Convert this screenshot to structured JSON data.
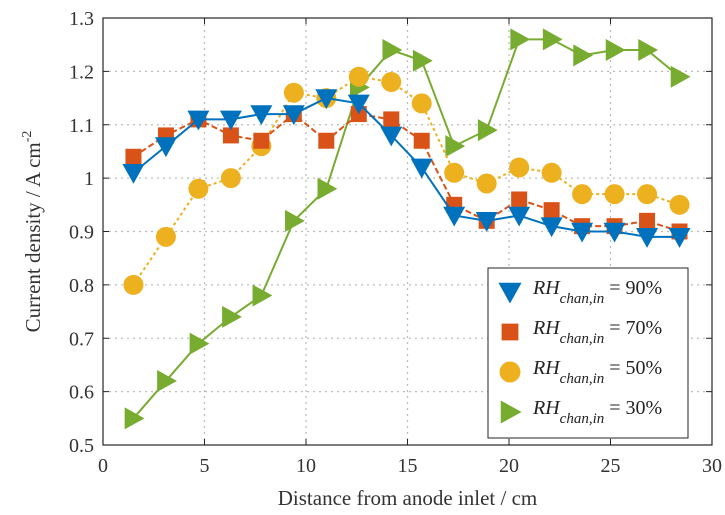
{
  "chart_data": {
    "type": "line",
    "xlabel": "Distance from anode inlet / cm",
    "ylabel": {
      "main": "Current density / A cm",
      "superscript": "-2"
    },
    "xlim": [
      0,
      30
    ],
    "ylim": [
      0.5,
      1.3
    ],
    "xticks": [
      0,
      5,
      10,
      15,
      20,
      25,
      30
    ],
    "yticks": [
      0.5,
      0.6,
      0.7,
      0.8,
      0.9,
      1,
      1.1,
      1.2,
      1.3
    ],
    "grid": true,
    "legend_position": "bottom-right",
    "x": [
      1.5,
      3.1,
      4.7,
      6.3,
      7.8,
      9.4,
      11.0,
      12.6,
      14.2,
      15.7,
      17.3,
      18.9,
      20.5,
      22.1,
      23.6,
      25.2,
      26.8,
      28.4
    ],
    "series": [
      {
        "label_main": "RH",
        "label_sub": "chan,in",
        "label_value": "= 90%",
        "marker": "triangle-down",
        "color": "#0072BD",
        "values": [
          1.01,
          1.06,
          1.11,
          1.11,
          1.12,
          1.12,
          1.15,
          1.14,
          1.08,
          1.02,
          0.93,
          0.92,
          0.93,
          0.91,
          0.9,
          0.9,
          0.89,
          0.89
        ]
      },
      {
        "label_main": "RH",
        "label_sub": "chan,in",
        "label_value": "= 70%",
        "marker": "square",
        "color": "#D95319",
        "values": [
          1.04,
          1.08,
          1.11,
          1.08,
          1.07,
          1.12,
          1.07,
          1.12,
          1.11,
          1.07,
          0.95,
          0.92,
          0.96,
          0.94,
          0.91,
          0.91,
          0.92,
          0.9
        ]
      },
      {
        "label_main": "RH",
        "label_sub": "chan,in",
        "label_value": "= 50%",
        "marker": "circle",
        "color": "#EDB120",
        "values": [
          0.8,
          0.89,
          0.98,
          1.0,
          1.06,
          1.16,
          1.15,
          1.19,
          1.18,
          1.14,
          1.01,
          0.99,
          1.02,
          1.01,
          0.97,
          0.97,
          0.97,
          0.95
        ]
      },
      {
        "label_main": "RH",
        "label_sub": "chan,in",
        "label_value": "= 30%",
        "marker": "triangle-right",
        "color": "#77AC30",
        "values": [
          0.55,
          0.62,
          0.69,
          0.74,
          0.78,
          0.92,
          0.98,
          1.17,
          1.24,
          1.22,
          1.06,
          1.09,
          1.26,
          1.26,
          1.23,
          1.24,
          1.24,
          1.19
        ]
      }
    ]
  }
}
